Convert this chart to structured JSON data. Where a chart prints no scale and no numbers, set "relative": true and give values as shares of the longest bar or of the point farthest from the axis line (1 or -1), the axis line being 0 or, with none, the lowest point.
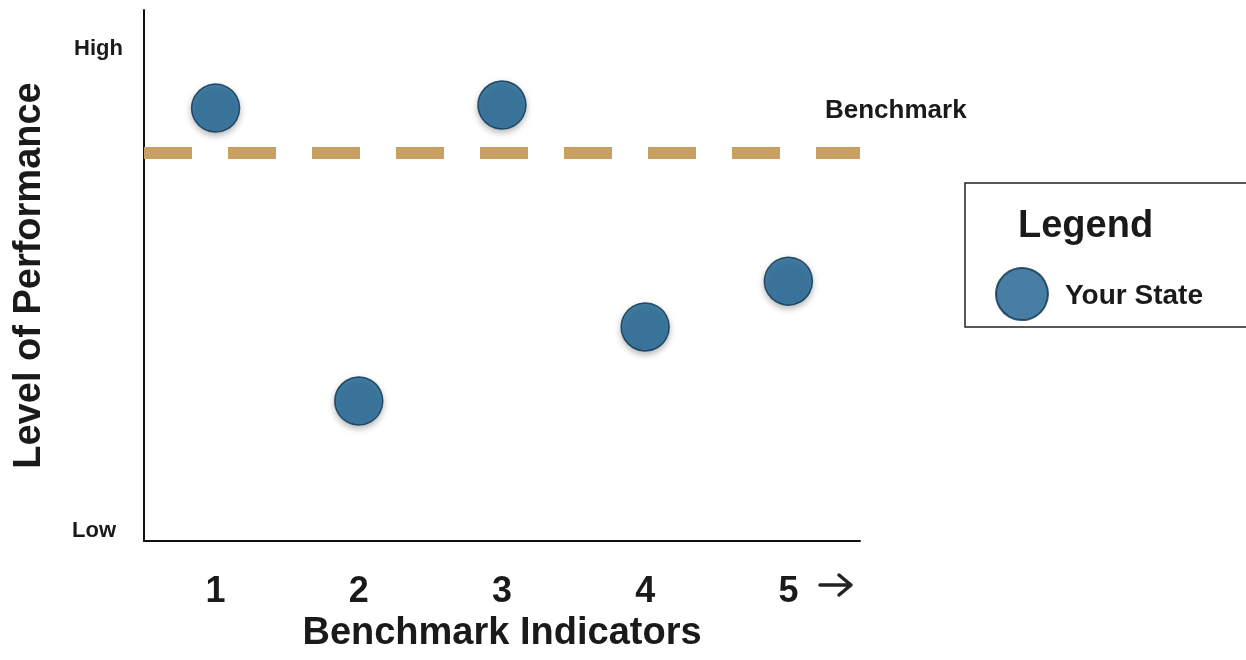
{
  "chart_data": {
    "type": "scatter",
    "relative": true,
    "xlabel": "Benchmark Indicators",
    "ylabel": "Level of Performance",
    "annotations": [
      "High",
      "Low"
    ],
    "legend_title": "Legend",
    "legend": "right",
    "marker": "circle",
    "grid": false,
    "categories": [
      "1",
      "2",
      "3",
      "4",
      "5"
    ],
    "series": [
      {
        "name": "Your State",
        "color": "#1a5e8c",
        "values": [
          0.993,
          0.321,
          1,
          0.491,
          0.596
        ]
      }
    ],
    "ref_lines": [
      {
        "axis": "y",
        "value": 0.888,
        "label": "Benchmark",
        "color": "#c8a062",
        "line_style": "dashed"
      }
    ]
  }
}
